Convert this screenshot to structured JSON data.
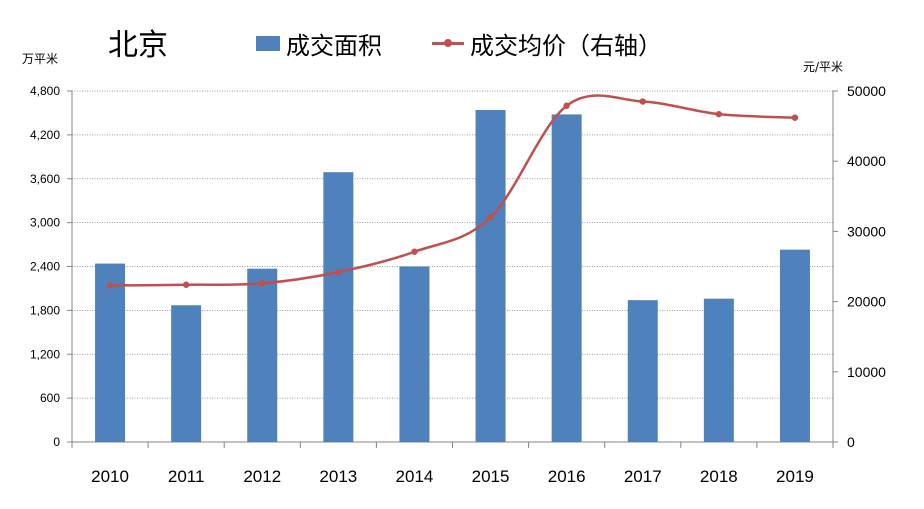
{
  "chart_data": {
    "type": "bar+line",
    "title": "北京",
    "categories": [
      "2010",
      "2011",
      "2012",
      "2013",
      "2014",
      "2015",
      "2016",
      "2017",
      "2018",
      "2019"
    ],
    "series": [
      {
        "name": "成交面积",
        "type": "bar",
        "axis": "left",
        "color": "#4F81BD",
        "values": [
          2440,
          1870,
          2370,
          3690,
          2400,
          4540,
          4480,
          1940,
          1960,
          2630
        ]
      },
      {
        "name": "成交均价（右轴）",
        "type": "line",
        "axis": "right",
        "color": "#C0504D",
        "values": [
          22300,
          22400,
          22600,
          24200,
          27100,
          32000,
          47900,
          48500,
          46700,
          46200
        ]
      }
    ],
    "left_axis": {
      "unit": "万平米",
      "ylim": [
        0,
        4800
      ],
      "ticks": [
        0,
        600,
        1200,
        1800,
        2400,
        3000,
        3600,
        4200,
        4800
      ],
      "tick_labels": [
        "0",
        "600",
        "1,200",
        "1,800",
        "2,400",
        "3,000",
        "3,600",
        "4,200",
        "4,800"
      ]
    },
    "right_axis": {
      "unit": "元/平米",
      "ylim": [
        0,
        50000
      ],
      "ticks": [
        0,
        10000,
        20000,
        30000,
        40000,
        50000
      ],
      "tick_labels": [
        "0",
        "10000",
        "20000",
        "30000",
        "40000",
        "50000"
      ]
    },
    "grid": true,
    "legend_position": "top"
  }
}
